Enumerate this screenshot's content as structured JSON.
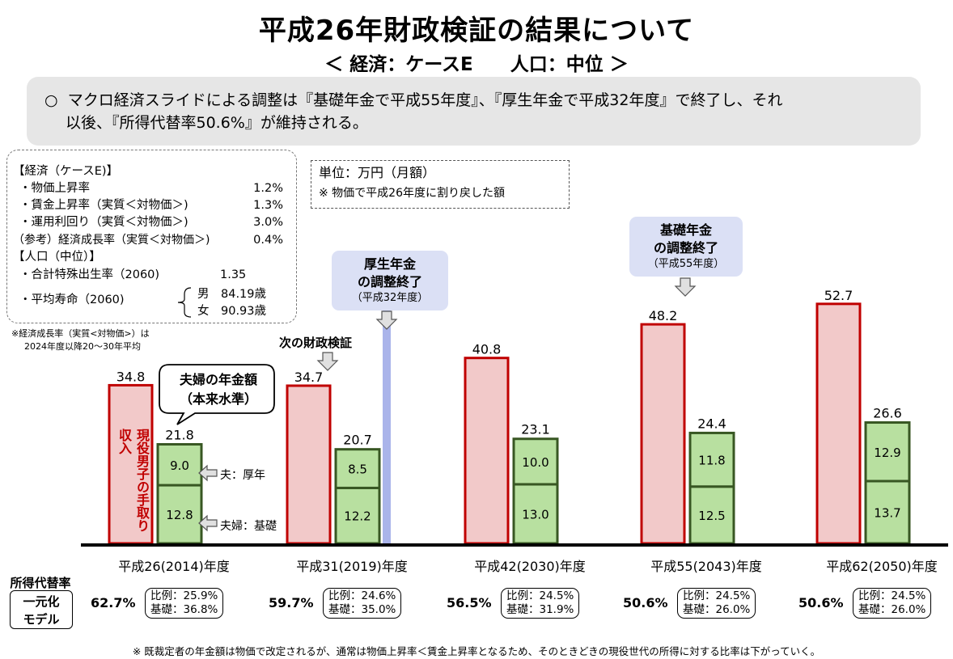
{
  "header": {
    "title": "平成26年財政検証の結果について",
    "subtitle": "＜ 経済：ケースE　　人口：中位 ＞"
  },
  "summary": {
    "bullet": "○",
    "line1": "マクロ経済スライドによる調整は『基礎年金で平成55年度』、『厚生年金で平成32年度』で終了し、それ",
    "line2": "以後、『所得代替率50.6%』が維持される。"
  },
  "assumptions": {
    "econ_header": "【経済（ケースE)】",
    "rows": [
      {
        "label": "・物価上昇率",
        "value": "1.2%"
      },
      {
        "label": "・賃金上昇率（実質＜対物価＞)",
        "value": "1.3%"
      },
      {
        "label": "・運用利回り（実質＜対物価＞)",
        "value": "3.0%"
      },
      {
        "label": "（参考）経済成長率（実質＜対物価＞)",
        "value": "0.4%"
      }
    ],
    "pop_header": "【人口（中位）】",
    "fertility_label": "・合計特殊出生率（2060)",
    "fertility_value": "1.35",
    "life_label": "・平均寿命（2060)",
    "life_male": "男　84.19歳",
    "life_female": "女　90.93歳",
    "note_line1": "※経済成長率（実質<対物価>）は",
    "note_line2": "2024年度以降20～30年平均"
  },
  "unit": {
    "line1": "単位：万円（月額）",
    "line2": "※ 物価で平成26年度に割り戻した額"
  },
  "callouts": {
    "kousei_line1": "厚生年金",
    "kousei_line2": "の調整終了",
    "kousei_line3": "（平成32年度）",
    "kiso_line1": "基礎年金",
    "kiso_line2": "の調整終了",
    "kiso_line3": "（平成55年度）",
    "next_review": "次の財政検証",
    "couple_line1": "夫婦の年金額",
    "couple_line2": "（本来水準）",
    "worker_label": "現役男子の手取り収入",
    "husband_label": "夫：厚年",
    "couple_basic_label": "夫婦：基礎"
  },
  "chart_data": {
    "type": "bar",
    "title": "平成26年財政検証の結果について",
    "categories": [
      "平成26(2014)年度",
      "平成31(2019)年度",
      "平成42(2030)年度",
      "平成55(2043)年度",
      "平成62(2050)年度"
    ],
    "series": [
      {
        "name": "現役男子の手取り収入",
        "values": [
          34.8,
          34.7,
          40.8,
          48.2,
          52.7
        ]
      },
      {
        "name": "夫婦：基礎",
        "values": [
          12.8,
          12.2,
          13.0,
          12.5,
          13.7
        ]
      },
      {
        "name": "夫：厚年",
        "values": [
          9.0,
          8.5,
          10.0,
          11.8,
          12.9
        ]
      }
    ],
    "pension_totals": [
      21.8,
      20.7,
      23.1,
      24.4,
      26.6
    ],
    "ylim": [
      0,
      60
    ],
    "unit": "万円（月額）",
    "colors": {
      "worker_fill": "#f2c9c9",
      "worker_border": "#c00000",
      "pension_fill": "#b8e0a0",
      "pension_border": "#385723",
      "marker_line": "#aab4ea"
    }
  },
  "replacement": {
    "label_line1": "所得代替率",
    "label_line2": "一元化",
    "label_line3": "モデル",
    "items": [
      {
        "rate": "62.7%",
        "prop": "比例：25.9%",
        "basic": "基礎：36.8%"
      },
      {
        "rate": "59.7%",
        "prop": "比例：24.6%",
        "basic": "基礎：35.0%"
      },
      {
        "rate": "56.5%",
        "prop": "比例：24.5%",
        "basic": "基礎：31.9%"
      },
      {
        "rate": "50.6%",
        "prop": "比例：24.5%",
        "basic": "基礎：26.0%"
      },
      {
        "rate": "50.6%",
        "prop": "比例：24.5%",
        "basic": "基礎：26.0%"
      }
    ]
  },
  "footnote": "※ 既裁定者の年金額は物価で改定されるが、通常は物価上昇率＜賃金上昇率となるため、そのときどきの現役世代の所得に対する比率は下がっていく。"
}
